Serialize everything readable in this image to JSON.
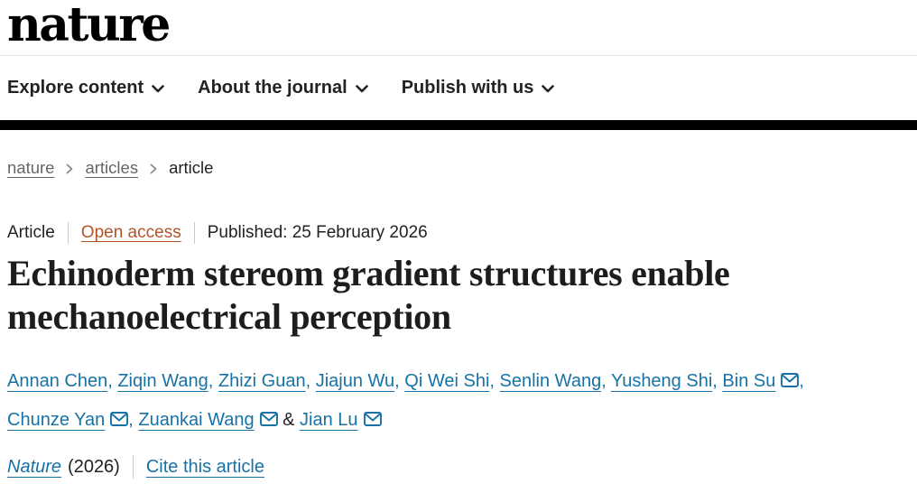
{
  "logo": {
    "text": "nature"
  },
  "nav": {
    "items": [
      {
        "label": "Explore content"
      },
      {
        "label": "About the journal"
      },
      {
        "label": "Publish with us"
      }
    ]
  },
  "breadcrumb": {
    "items": [
      {
        "label": "nature"
      },
      {
        "label": "articles"
      },
      {
        "label": "article"
      }
    ]
  },
  "meta": {
    "type": "Article",
    "access": "Open access",
    "published": "Published: 25 February 2026"
  },
  "article": {
    "title": "Echinoderm stereom gradient structures enable mechanoelectrical perception"
  },
  "authors": {
    "list": [
      {
        "name": "Annan Chen",
        "email": false
      },
      {
        "name": "Ziqin Wang",
        "email": false
      },
      {
        "name": "Zhizi Guan",
        "email": false
      },
      {
        "name": "Jiajun Wu",
        "email": false
      },
      {
        "name": "Qi Wei Shi",
        "email": false
      },
      {
        "name": "Senlin Wang",
        "email": false
      },
      {
        "name": "Yusheng Shi",
        "email": false
      },
      {
        "name": "Bin Su",
        "email": true
      },
      {
        "name": "Chunze Yan",
        "email": true
      },
      {
        "name": "Zuankai Wang",
        "email": true
      },
      {
        "name": "Jian Lu",
        "email": true
      }
    ],
    "separator": ", ",
    "last_separator": "&"
  },
  "footer": {
    "journal": "Nature",
    "year": "(2026)",
    "cite": "Cite this article"
  },
  "colors": {
    "link_blue": "#1772a6",
    "open_access": "#b45228",
    "text_dark": "#222222",
    "breadcrumb_gray": "#666666",
    "bar_black": "#000000"
  }
}
